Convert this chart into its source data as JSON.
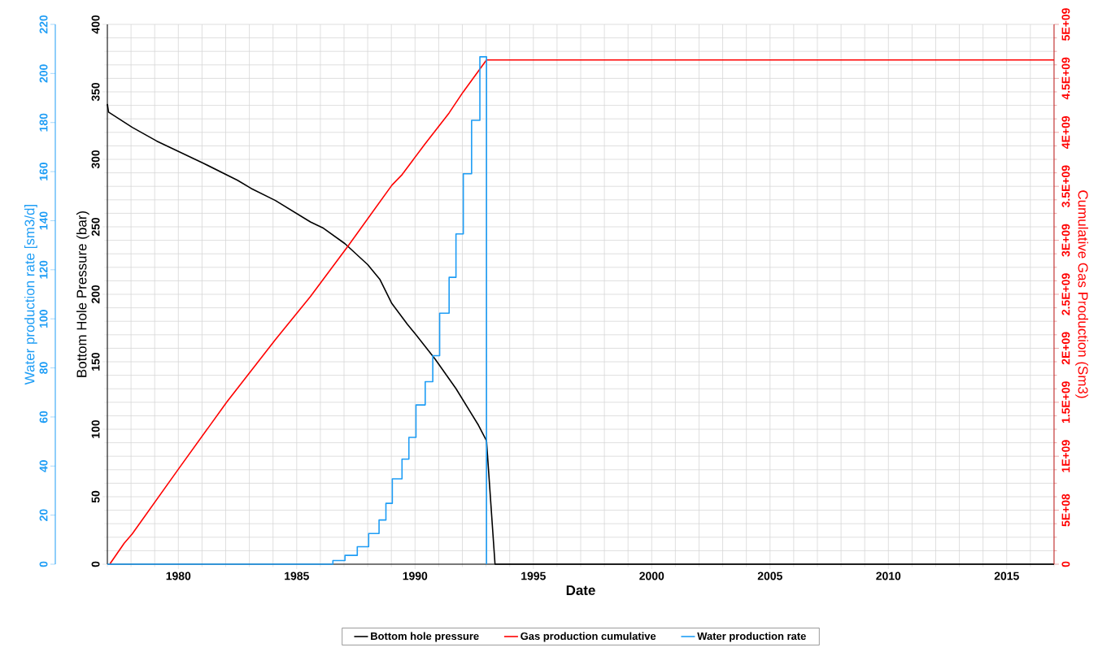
{
  "chart_data": {
    "type": "line",
    "xlabel": "Date",
    "ylabel": "Bottom Hole Pressure (bar)",
    "y2label": "Cumulative Gas Production (Sm3)",
    "y3label": "Water production rate [sm3/d]",
    "xlim": [
      1977,
      2017
    ],
    "xticks": [
      {
        "value": 1977,
        "label": null
      },
      {
        "value": 1978,
        "label": null
      },
      {
        "value": 1979,
        "label": null
      },
      1980,
      {
        "value": 1981,
        "label": null
      },
      {
        "value": 1982,
        "label": null
      },
      {
        "value": 1983,
        "label": null
      },
      {
        "value": 1984,
        "label": null
      },
      1985,
      {
        "value": 1986,
        "label": null
      },
      {
        "value": 1987,
        "label": null
      },
      {
        "value": 1988,
        "label": null
      },
      {
        "value": 1989,
        "label": null
      },
      1990,
      {
        "value": 1991,
        "label": null
      },
      {
        "value": 1992,
        "label": null
      },
      {
        "value": 1993,
        "label": null
      },
      {
        "value": 1994,
        "label": null
      },
      1995,
      {
        "value": 1996,
        "label": null
      },
      {
        "value": 1997,
        "label": null
      },
      {
        "value": 1998,
        "label": null
      },
      {
        "value": 1999,
        "label": null
      },
      2000,
      {
        "value": 2001,
        "label": null
      },
      {
        "value": 2002,
        "label": null
      },
      {
        "value": 2003,
        "label": null
      },
      {
        "value": 2004,
        "label": null
      },
      2005,
      {
        "value": 2006,
        "label": null
      },
      {
        "value": 2007,
        "label": null
      },
      {
        "value": 2008,
        "label": null
      },
      {
        "value": 2009,
        "label": null
      },
      2010,
      {
        "value": 2011,
        "label": null
      },
      {
        "value": 2012,
        "label": null
      },
      {
        "value": 2013,
        "label": null
      },
      {
        "value": 2014,
        "label": null
      },
      2015,
      {
        "value": 2016,
        "label": null
      },
      {
        "value": 2017,
        "label": null
      }
    ],
    "ylim": [
      0,
      400
    ],
    "yticks": [
      0,
      {
        "value": 10,
        "label": null
      },
      {
        "value": 20,
        "label": null
      },
      {
        "value": 30,
        "label": null
      },
      {
        "value": 40,
        "label": null
      },
      50,
      {
        "value": 60,
        "label": null
      },
      {
        "value": 70,
        "label": null
      },
      {
        "value": 80,
        "label": null
      },
      {
        "value": 90,
        "label": null
      },
      100,
      {
        "value": 110,
        "label": null
      },
      {
        "value": 120,
        "label": null
      },
      {
        "value": 130,
        "label": null
      },
      {
        "value": 140,
        "label": null
      },
      150,
      {
        "value": 160,
        "label": null
      },
      {
        "value": 170,
        "label": null
      },
      {
        "value": 180,
        "label": null
      },
      {
        "value": 190,
        "label": null
      },
      200,
      {
        "value": 210,
        "label": null
      },
      {
        "value": 220,
        "label": null
      },
      {
        "value": 230,
        "label": null
      },
      {
        "value": 240,
        "label": null
      },
      250,
      {
        "value": 260,
        "label": null
      },
      {
        "value": 270,
        "label": null
      },
      {
        "value": 280,
        "label": null
      },
      {
        "value": 290,
        "label": null
      },
      300,
      {
        "value": 310,
        "label": null
      },
      {
        "value": 320,
        "label": null
      },
      {
        "value": 330,
        "label": null
      },
      {
        "value": 340,
        "label": null
      },
      350,
      {
        "value": 360,
        "label": null
      },
      {
        "value": 370,
        "label": null
      },
      {
        "value": 380,
        "label": null
      },
      {
        "value": 390,
        "label": null
      },
      400
    ],
    "y2lim": [
      0,
      5000000000
    ],
    "y2ticks": [
      0,
      {
        "value": 125000000,
        "label": null
      },
      {
        "value": 250000000,
        "label": null
      },
      {
        "value": 375000000,
        "label": null
      },
      {
        "value": 500000000,
        "label": "5E+08"
      },
      {
        "value": 625000000,
        "label": null
      },
      {
        "value": 750000000,
        "label": null
      },
      {
        "value": 875000000,
        "label": null
      },
      {
        "value": 1000000000,
        "label": "1E+09"
      },
      {
        "value": 1125000000,
        "label": null
      },
      {
        "value": 1250000000,
        "label": null
      },
      {
        "value": 1375000000,
        "label": null
      },
      {
        "value": 1500000000,
        "label": "1.5E+09"
      },
      {
        "value": 1625000000,
        "label": null
      },
      {
        "value": 1750000000,
        "label": null
      },
      {
        "value": 1875000000,
        "label": null
      },
      {
        "value": 2000000000,
        "label": "2E+09"
      },
      {
        "value": 2125000000,
        "label": null
      },
      {
        "value": 2250000000,
        "label": null
      },
      {
        "value": 2375000000,
        "label": null
      },
      {
        "value": 2500000000,
        "label": "2.5E+09"
      },
      {
        "value": 2625000000,
        "label": null
      },
      {
        "value": 2750000000,
        "label": null
      },
      {
        "value": 2875000000,
        "label": null
      },
      {
        "value": 3000000000,
        "label": "3E+09"
      },
      {
        "value": 3125000000,
        "label": null
      },
      {
        "value": 3250000000,
        "label": null
      },
      {
        "value": 3375000000,
        "label": null
      },
      {
        "value": 3500000000,
        "label": "3.5E+09"
      },
      {
        "value": 3625000000,
        "label": null
      },
      {
        "value": 3750000000,
        "label": null
      },
      {
        "value": 3875000000,
        "label": null
      },
      {
        "value": 4000000000,
        "label": "4E+09"
      },
      {
        "value": 4125000000,
        "label": null
      },
      {
        "value": 4250000000,
        "label": null
      },
      {
        "value": 4375000000,
        "label": null
      },
      {
        "value": 4500000000,
        "label": "4.5E+09"
      },
      {
        "value": 4625000000,
        "label": null
      },
      {
        "value": 4750000000,
        "label": null
      },
      {
        "value": 4875000000,
        "label": null
      },
      {
        "value": 5000000000,
        "label": "5E+09"
      }
    ],
    "y3lim": [
      0,
      220
    ],
    "y3ticks": [
      0,
      20,
      40,
      60,
      80,
      100,
      120,
      140,
      160,
      180,
      200,
      220
    ],
    "grid": true,
    "legend": "bottom",
    "marker": "none",
    "series": [
      {
        "name": "Bottom hole pressure",
        "color": "#000000",
        "x": [
          1977.0,
          1977.05,
          1978.05,
          1979.08,
          1981.07,
          1982.5,
          1983.07,
          1984.1,
          1985.58,
          1986.1,
          1987.04,
          1988.0,
          1988.51,
          1989.02,
          1989.68,
          1990.04,
          1990.85,
          1991.73,
          1992.68,
          1993.02,
          1993.38,
          2017
        ],
        "values": [
          341,
          335,
          323.7,
          313.6,
          297,
          284.5,
          278.5,
          269.5,
          253.6,
          249.3,
          237.5,
          222,
          211.2,
          193.2,
          177.7,
          170,
          152,
          130.1,
          103,
          91.5,
          0,
          0
        ]
      },
      {
        "name": "Gas production cumulative",
        "color": "#ff0000",
        "axis": "y2",
        "x": [
          1977.1,
          1977.71,
          1978.05,
          1980.0,
          1982.04,
          1984.1,
          1985.58,
          1987.18,
          1989.02,
          1989.46,
          1990.41,
          1991.44,
          1992.02,
          1993.02,
          2017
        ],
        "values": [
          0,
          194000000,
          281000000,
          880000000,
          1500000000,
          2080000000,
          2480000000,
          2950000000,
          3510000000,
          3610000000,
          3890000000,
          4180000000,
          4370000000,
          4670000000,
          4670000000
        ]
      },
      {
        "name": "Water production rate",
        "color": "#1e9df5",
        "type": "step",
        "axis": "y3",
        "x": [
          1977,
          1986.53,
          1987.04,
          1987.56,
          1988.04,
          1988.48,
          1988.77,
          1989.04,
          1989.45,
          1989.74,
          1990.04,
          1990.43,
          1990.75,
          1991.04,
          1991.44,
          1991.73,
          1992.04,
          1992.39,
          1992.74,
          1993.02
        ],
        "values": [
          0,
          1.5,
          3.6,
          7.1,
          12.5,
          18,
          24.8,
          34.8,
          42.8,
          51.7,
          64.9,
          74.4,
          85,
          102.3,
          116.9,
          134.6,
          159.1,
          180.9,
          206.8,
          0
        ]
      }
    ]
  }
}
